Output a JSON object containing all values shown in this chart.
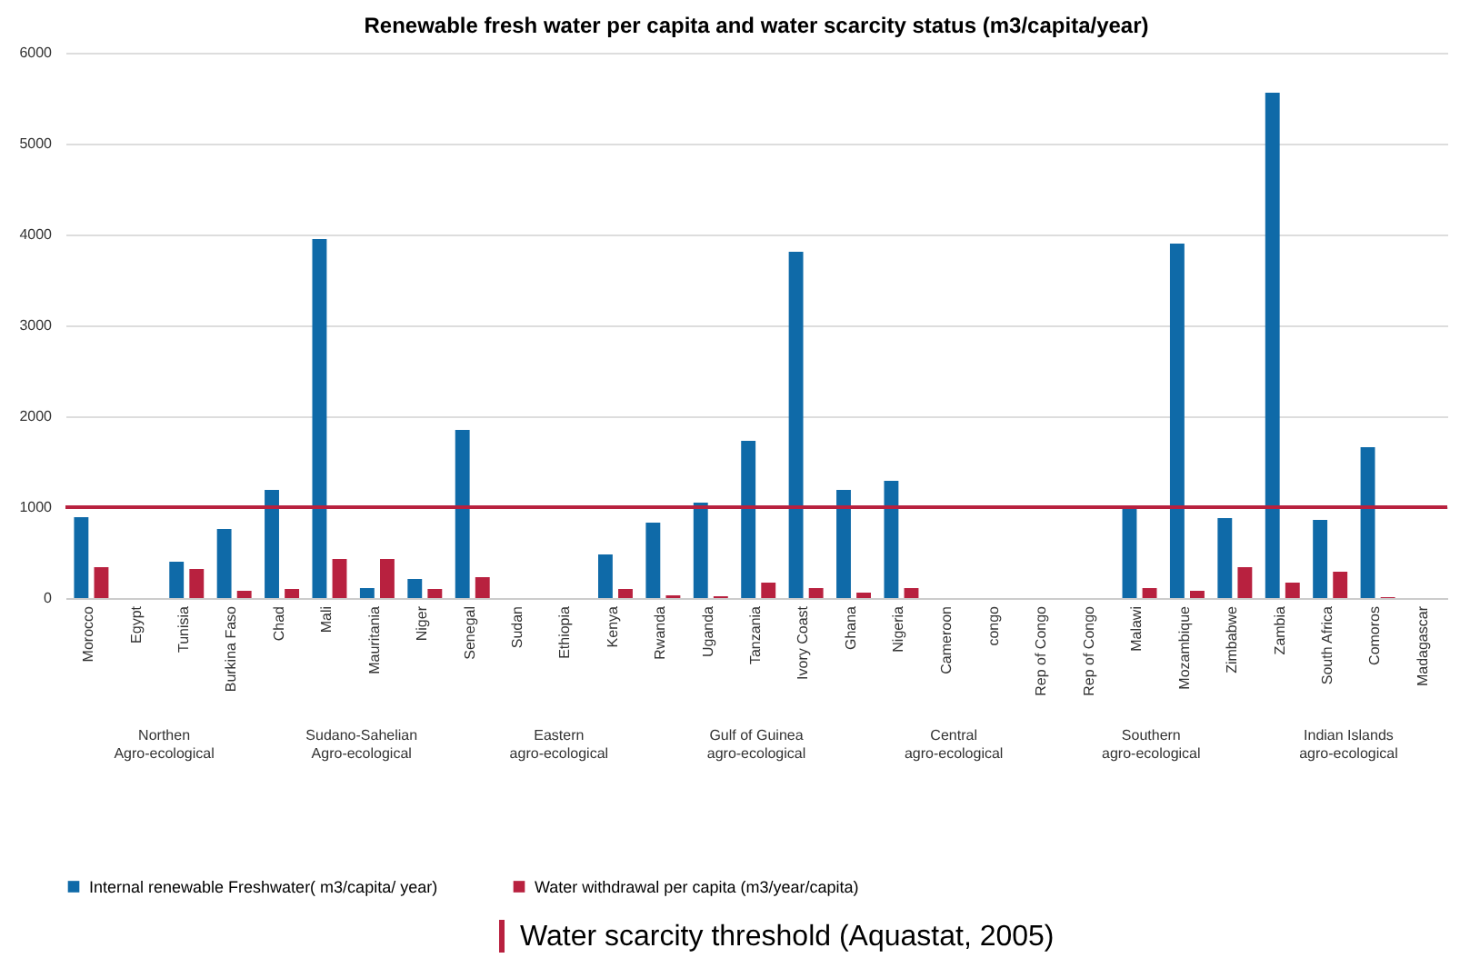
{
  "chart_data": {
    "type": "bar",
    "title": "Renewable fresh water per capita and water scarcity status (m3/capita/year)",
    "categories": [
      "Morocco",
      "Egypt",
      "Tunisia",
      "Burkina Faso",
      "Chad",
      "Mali",
      "Mauritania",
      "Niger",
      "Senegal",
      "Sudan",
      "Ethiopia",
      "Kenya",
      "Rwanda",
      "Uganda",
      "Tanzania",
      "Ivory Coast",
      "Ghana",
      "Nigeria",
      "Cameroon",
      "congo",
      "Rep of Congo",
      "Rep of Congo",
      "Malawi",
      "Mozambique",
      "Zimbabwe",
      "Zambia",
      "South Africa",
      "Comoros",
      "Madagascar"
    ],
    "series": [
      {
        "name": "Internal renewable Freshwater( m3/capita/ year)",
        "color": "#0f6aa8",
        "values": [
          890,
          null,
          400,
          760,
          1190,
          3950,
          110,
          210,
          1850,
          null,
          null,
          480,
          830,
          1050,
          1730,
          3810,
          1190,
          1290,
          null,
          null,
          null,
          null,
          1010,
          3900,
          880,
          5560,
          860,
          1660,
          null
        ]
      },
      {
        "name": "Water withdrawal per capita (m3/year/capita)",
        "color": "#b8213f",
        "values": [
          340,
          null,
          320,
          80,
          100,
          430,
          430,
          100,
          230,
          null,
          null,
          100,
          30,
          20,
          170,
          110,
          60,
          110,
          null,
          null,
          null,
          null,
          110,
          80,
          340,
          170,
          290,
          10,
          null
        ]
      }
    ],
    "ylim": [
      0,
      6000
    ],
    "yticks": [
      0,
      1000,
      2000,
      3000,
      4000,
      5000,
      6000
    ],
    "grid": "y",
    "legend": "bottom",
    "ref_lines": [
      {
        "axis": "y",
        "value": 1000,
        "label": "Water scarcity threshold (Aquastat, 2005)",
        "color": "#b8213f"
      }
    ],
    "annotations": [
      "Northen Agro-ecological",
      "Sudano-Sahelian Agro-ecological",
      "Eastern agro-ecological",
      "Gulf of Guinea agro-ecological",
      "Central agro-ecological",
      "Southern agro-ecological",
      "Indian Islands agro-ecological"
    ]
  }
}
